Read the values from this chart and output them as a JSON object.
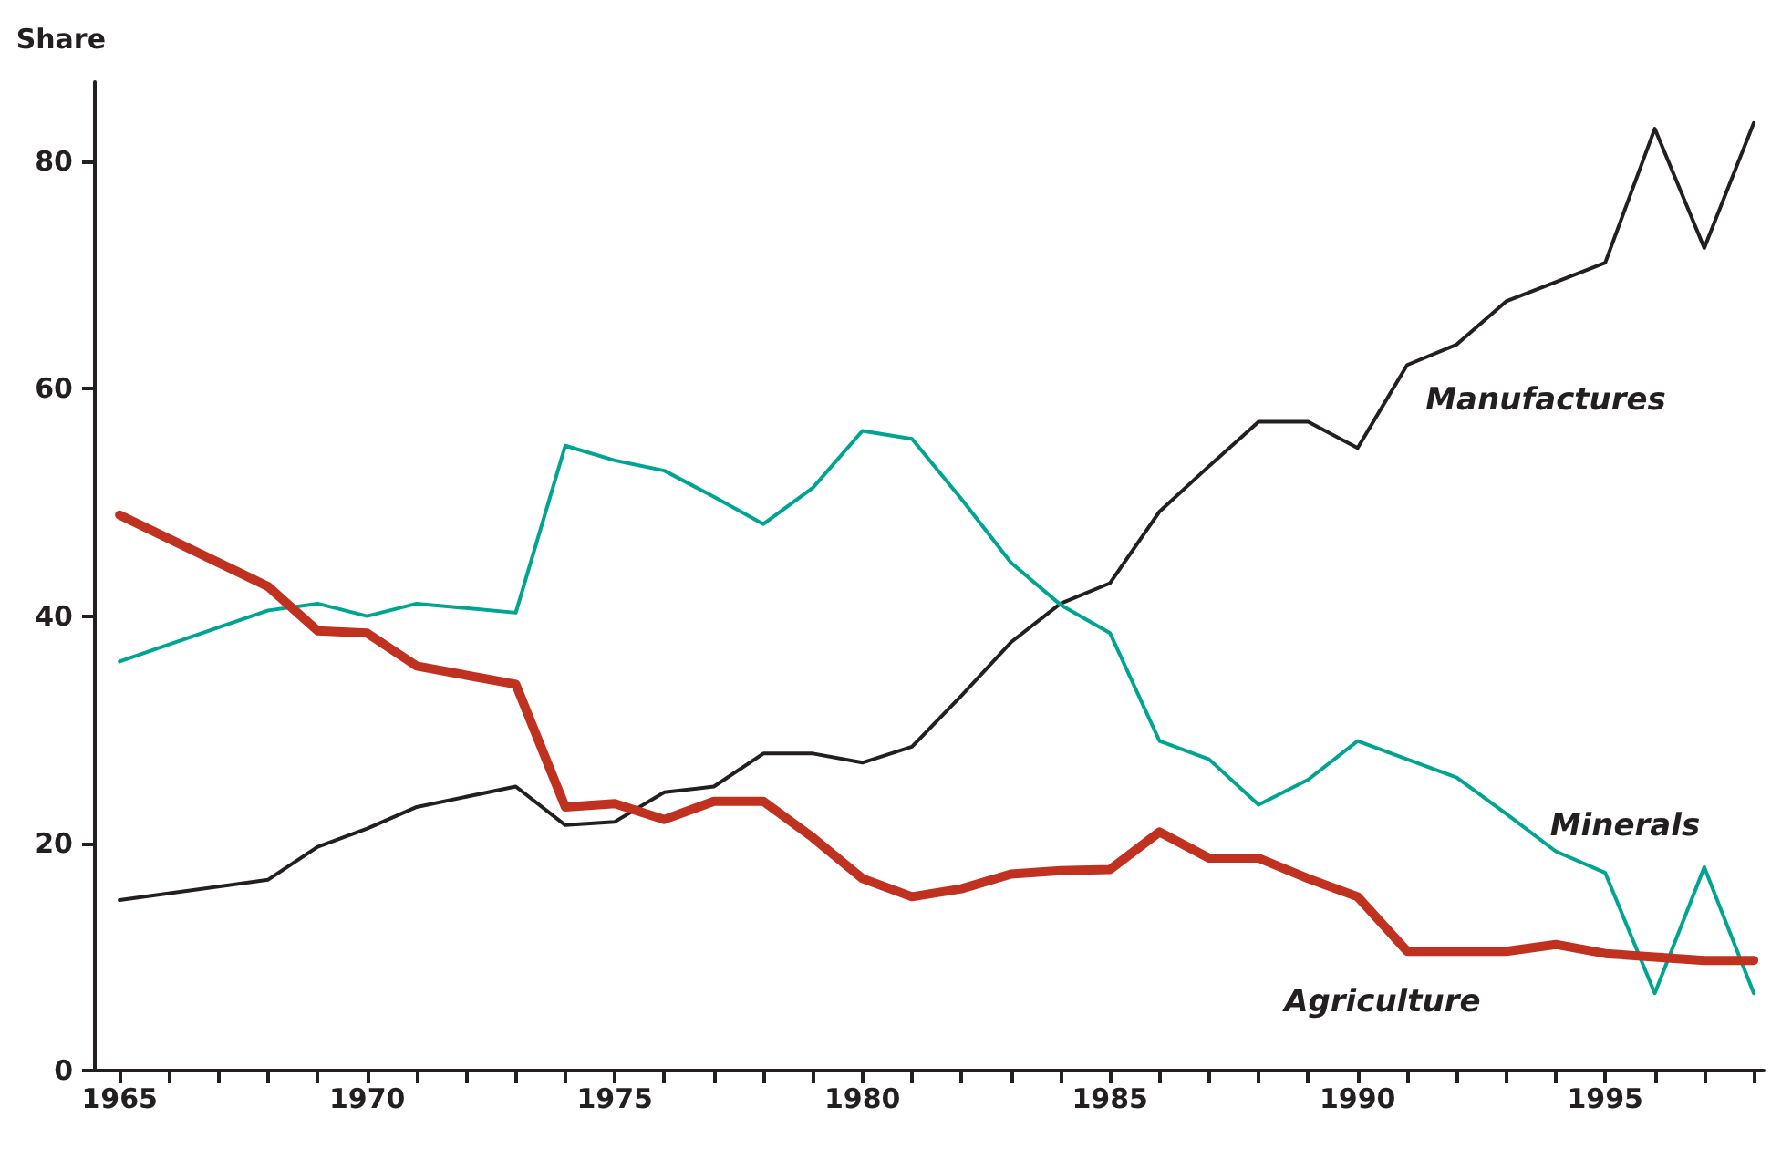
{
  "chart_data": {
    "type": "line",
    "ylabel": "Share",
    "x": [
      1965,
      1968,
      1969,
      1970,
      1971,
      1973,
      1974,
      1975,
      1976,
      1977,
      1978,
      1979,
      1980,
      1981,
      1982,
      1983,
      1984,
      1985,
      1986,
      1987,
      1988,
      1989,
      1990,
      1991,
      1992,
      1993,
      1994,
      1995,
      1996,
      1997,
      1998
    ],
    "series": [
      {
        "name": "Manufactures",
        "color": "#231f20",
        "values": [
          15.0,
          16.8,
          19.7,
          21.3,
          23.2,
          25.0,
          21.6,
          21.9,
          24.5,
          25.0,
          27.9,
          27.9,
          27.1,
          28.5,
          33.0,
          37.7,
          41.1,
          42.9,
          49.2,
          53.2,
          57.1,
          57.1,
          54.8,
          62.1,
          63.9,
          67.7,
          69.4,
          71.1,
          82.9,
          72.4,
          83.4
        ]
      },
      {
        "name": "Minerals",
        "color": "#00a591",
        "values": [
          36.0,
          40.5,
          41.1,
          40.0,
          41.1,
          40.3,
          55.0,
          53.7,
          52.8,
          50.5,
          48.1,
          51.3,
          56.3,
          55.6,
          50.3,
          44.7,
          41.0,
          38.5,
          29.0,
          27.4,
          23.4,
          25.6,
          29.0,
          27.4,
          25.8,
          22.6,
          19.3,
          17.4,
          6.8,
          17.9,
          6.8
        ]
      },
      {
        "name": "Agriculture",
        "color": "#c1311f",
        "values": [
          48.9,
          42.6,
          38.7,
          38.5,
          35.6,
          34.0,
          23.2,
          23.5,
          22.1,
          23.7,
          23.7,
          20.5,
          16.9,
          15.3,
          16.0,
          17.3,
          17.6,
          17.7,
          21.0,
          18.7,
          18.7,
          16.9,
          15.3,
          10.5,
          10.5,
          10.5,
          11.1,
          10.3,
          10.0,
          9.7,
          9.7
        ]
      }
    ],
    "xlim": [
      1964.5,
      1998.2
    ],
    "xticks": [
      1965,
      {
        "value": 1966,
        "label": null
      },
      {
        "value": 1967,
        "label": null
      },
      {
        "value": 1968,
        "label": null
      },
      {
        "value": 1969,
        "label": null
      },
      1970,
      {
        "value": 1971,
        "label": null
      },
      {
        "value": 1972,
        "label": null
      },
      {
        "value": 1973,
        "label": null
      },
      {
        "value": 1974,
        "label": null
      },
      1975,
      {
        "value": 1976,
        "label": null
      },
      {
        "value": 1977,
        "label": null
      },
      {
        "value": 1978,
        "label": null
      },
      {
        "value": 1979,
        "label": null
      },
      1980,
      {
        "value": 1981,
        "label": null
      },
      {
        "value": 1982,
        "label": null
      },
      {
        "value": 1983,
        "label": null
      },
      {
        "value": 1984,
        "label": null
      },
      1985,
      {
        "value": 1986,
        "label": null
      },
      {
        "value": 1987,
        "label": null
      },
      {
        "value": 1988,
        "label": null
      },
      {
        "value": 1989,
        "label": null
      },
      1990,
      {
        "value": 1991,
        "label": null
      },
      {
        "value": 1992,
        "label": null
      },
      {
        "value": 1993,
        "label": null
      },
      {
        "value": 1994,
        "label": null
      },
      1995,
      {
        "value": 1996,
        "label": null
      },
      {
        "value": 1997,
        "label": null
      },
      {
        "value": 1998,
        "label": null
      }
    ],
    "ylim": [
      0,
      87
    ],
    "yticks": [
      0,
      20,
      40,
      60,
      80
    ],
    "grid": false,
    "legend": false,
    "marker": "none",
    "line_style": "solid"
  }
}
